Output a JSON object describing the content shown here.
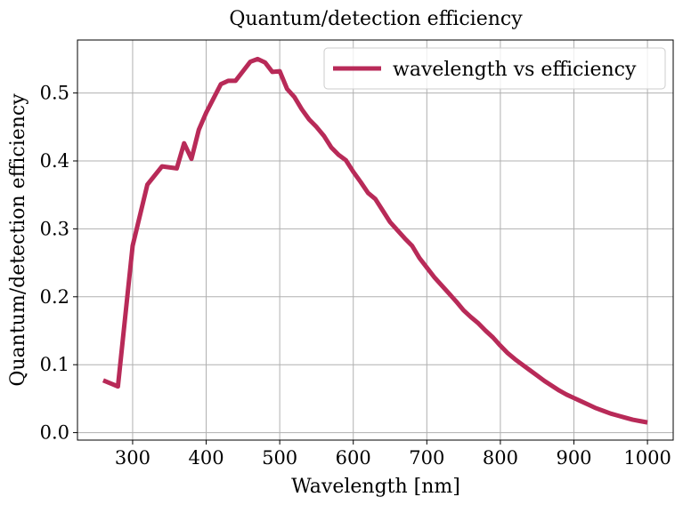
{
  "chart_data": {
    "type": "line",
    "title": "Quantum/detection efficiency",
    "xlabel": "Wavelength [nm]",
    "ylabel": "Quantum/detection efficiency",
    "xlim": [
      225,
      1035
    ],
    "ylim": [
      -0.011,
      0.578
    ],
    "xticks": [
      300,
      400,
      500,
      600,
      700,
      800,
      900,
      1000
    ],
    "yticks": [
      0.0,
      0.1,
      0.2,
      0.3,
      0.4,
      0.5
    ],
    "xtick_labels": [
      "300",
      "400",
      "500",
      "600",
      "700",
      "800",
      "900",
      "1000"
    ],
    "ytick_labels": [
      "0.0",
      "0.1",
      "0.2",
      "0.3",
      "0.4",
      "0.5"
    ],
    "grid": true,
    "legend_position": "top-right",
    "series": [
      {
        "name": "wavelength vs efficiency",
        "color": "#b82a58",
        "x": [
          260,
          280,
          300,
          320,
          340,
          360,
          370,
          380,
          390,
          400,
          410,
          420,
          430,
          440,
          450,
          460,
          470,
          480,
          490,
          500,
          510,
          520,
          530,
          540,
          550,
          560,
          570,
          580,
          590,
          600,
          610,
          620,
          630,
          640,
          650,
          660,
          670,
          680,
          690,
          700,
          710,
          720,
          730,
          740,
          750,
          760,
          770,
          780,
          790,
          800,
          810,
          820,
          830,
          840,
          850,
          860,
          870,
          880,
          890,
          900,
          910,
          920,
          930,
          940,
          950,
          960,
          970,
          980,
          990,
          1000
        ],
        "y": [
          0.077,
          0.068,
          0.275,
          0.365,
          0.392,
          0.389,
          0.426,
          0.403,
          0.446,
          0.471,
          0.492,
          0.513,
          0.518,
          0.518,
          0.532,
          0.546,
          0.55,
          0.545,
          0.531,
          0.532,
          0.506,
          0.494,
          0.476,
          0.461,
          0.45,
          0.437,
          0.42,
          0.409,
          0.401,
          0.384,
          0.369,
          0.353,
          0.344,
          0.327,
          0.31,
          0.298,
          0.286,
          0.275,
          0.257,
          0.243,
          0.229,
          0.217,
          0.205,
          0.193,
          0.18,
          0.17,
          0.161,
          0.15,
          0.14,
          0.128,
          0.117,
          0.108,
          0.1,
          0.092,
          0.084,
          0.076,
          0.069,
          0.062,
          0.056,
          0.051,
          0.046,
          0.041,
          0.036,
          0.032,
          0.028,
          0.025,
          0.022,
          0.019,
          0.017,
          0.015
        ]
      }
    ]
  }
}
